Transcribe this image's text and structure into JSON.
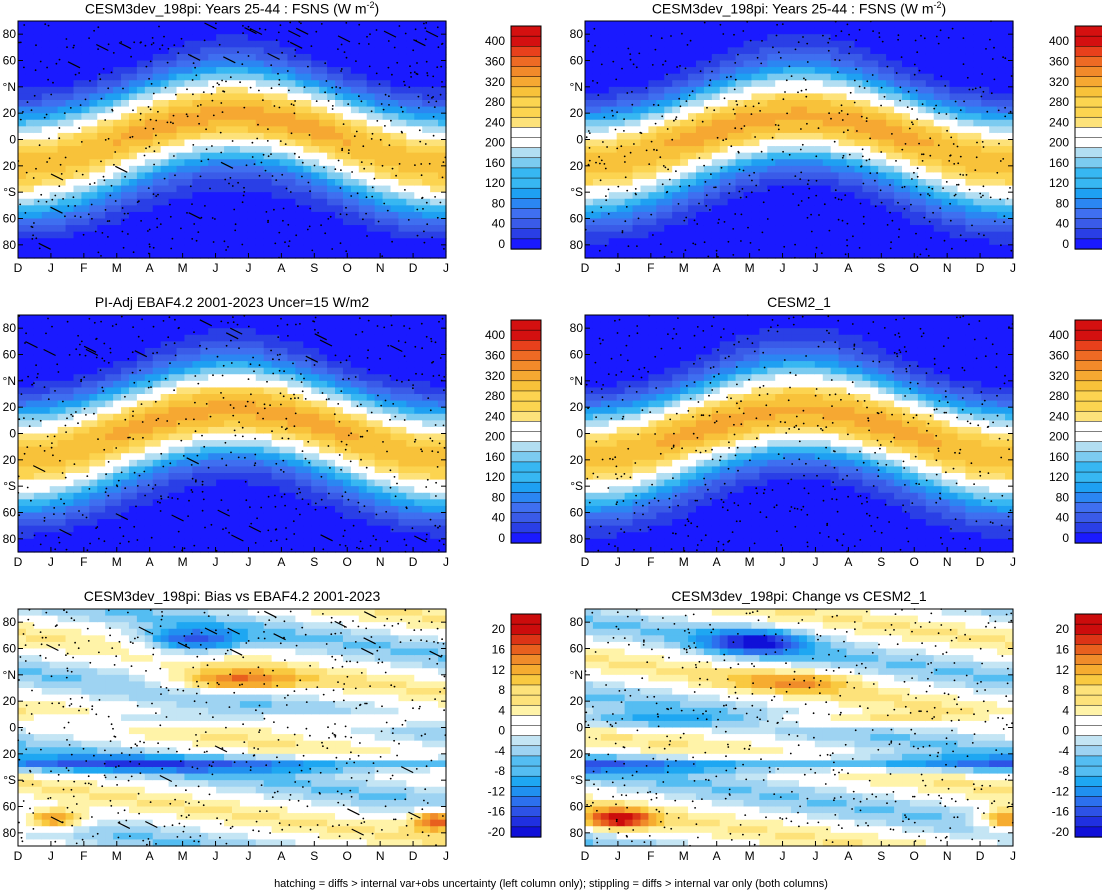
{
  "footer": "hatching = diffs > internal var+obs uncertainty (left column only); stippling = diffs > internal var only (both columns)",
  "colors": {
    "abs_scale": [
      "#1a1aff",
      "#2a3fe6",
      "#3a5be8",
      "#3f6ff0",
      "#2b86f2",
      "#1ea0f2",
      "#37b7f2",
      "#7ccbf0",
      "#b2def2",
      "#ffffff",
      "#ffffff",
      "#fde27a",
      "#fcd450",
      "#f8c23a",
      "#f6a832",
      "#f28a2a",
      "#ee6a24",
      "#e8401c",
      "#d41010"
    ],
    "diff_scale": [
      "#1010d8",
      "#2030e0",
      "#2d52e6",
      "#2c70ee",
      "#2090f0",
      "#1ea7f2",
      "#54bdf2",
      "#9ed3f2",
      "#c4e5f4",
      "#ffffff",
      "#ffffff",
      "#fff3a8",
      "#fde27a",
      "#f9c940",
      "#f6ac30",
      "#f08c2a",
      "#e8601e",
      "#dc3416",
      "#cc0c0c"
    ]
  },
  "panels": [
    {
      "title": "CESM3dev_198pi: Years 25-44 : FSNS (W m",
      "title_sup": "-2",
      "title_end": ")",
      "colorbar_labels": [
        "400",
        "360",
        "320",
        "280",
        "240",
        "200",
        "160",
        "120",
        "80",
        "40",
        "0"
      ],
      "chart_data": {
        "type": "heatmap",
        "field": "FSNS",
        "units": "W m-2",
        "ylim": [
          -90,
          90
        ],
        "clim": [
          -20,
          420
        ],
        "color_step": 20,
        "hatching": true,
        "stippling": true
      }
    },
    {
      "title": "CESM3dev_198pi: Years 25-44 : FSNS (W m",
      "title_sup": "-2",
      "title_end": ")",
      "colorbar_labels": [
        "400",
        "360",
        "320",
        "280",
        "240",
        "200",
        "160",
        "120",
        "80",
        "40",
        "0"
      ],
      "chart_data": {
        "type": "heatmap",
        "field": "FSNS",
        "units": "W m-2",
        "ylim": [
          -90,
          90
        ],
        "clim": [
          -20,
          420
        ],
        "color_step": 20,
        "hatching": false,
        "stippling": true
      }
    },
    {
      "title": "PI-Adj EBAF4.2 2001-2023 Uncer=15 W/m2",
      "title_sup": "",
      "title_end": "",
      "colorbar_labels": [
        "400",
        "360",
        "320",
        "280",
        "240",
        "200",
        "160",
        "120",
        "80",
        "40",
        "0"
      ],
      "chart_data": {
        "type": "heatmap",
        "field": "FSNS",
        "units": "W m-2",
        "ylim": [
          -90,
          90
        ],
        "clim": [
          -20,
          420
        ],
        "color_step": 20,
        "hatching": true,
        "stippling": true
      }
    },
    {
      "title": "CESM2_1",
      "title_sup": "",
      "title_end": "",
      "colorbar_labels": [
        "400",
        "360",
        "320",
        "280",
        "240",
        "200",
        "160",
        "120",
        "80",
        "40",
        "0"
      ],
      "chart_data": {
        "type": "heatmap",
        "field": "FSNS",
        "units": "W m-2",
        "ylim": [
          -90,
          90
        ],
        "clim": [
          -20,
          420
        ],
        "color_step": 20,
        "hatching": false,
        "stippling": true
      }
    },
    {
      "title": "CESM3dev_198pi: Bias vs EBAF4.2 2001-2023",
      "title_sup": "",
      "title_end": "",
      "colorbar_labels": [
        "20",
        "16",
        "12",
        "8",
        "4",
        "0",
        "-4",
        "-8",
        "-12",
        "-16",
        "-20"
      ],
      "chart_data": {
        "type": "heatmap",
        "field": "FSNS difference",
        "units": "W m-2",
        "ylim": [
          -90,
          90
        ],
        "clim": [
          -22,
          22
        ],
        "color_step": 2,
        "hatching": true,
        "stippling": true
      }
    },
    {
      "title": "CESM3dev_198pi: Change vs CESM2_1",
      "title_sup": "",
      "title_end": "",
      "colorbar_labels": [
        "20",
        "16",
        "12",
        "8",
        "4",
        "0",
        "-4",
        "-8",
        "-12",
        "-16",
        "-20"
      ],
      "chart_data": {
        "type": "heatmap",
        "field": "FSNS difference",
        "units": "W m-2",
        "ylim": [
          -90,
          90
        ],
        "clim": [
          -22,
          22
        ],
        "color_step": 2,
        "hatching": false,
        "stippling": true
      }
    }
  ],
  "axes": {
    "x_ticks": [
      "D",
      "J",
      "F",
      "M",
      "A",
      "M",
      "J",
      "J",
      "A",
      "S",
      "O",
      "N",
      "D",
      "J"
    ],
    "y_ticks": [
      "80",
      "60",
      "°N",
      "20",
      "0",
      "20",
      "°S",
      "60",
      "80"
    ]
  }
}
